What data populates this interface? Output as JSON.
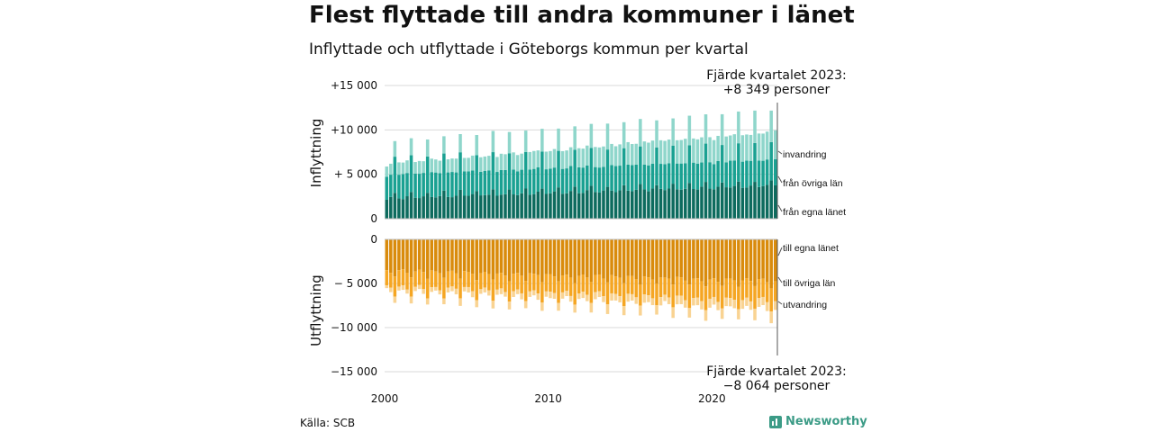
{
  "title": "Flest flyttade till andra kommuner i länet",
  "subtitle": "Inflyttade och utflyttade i Göteborgs kommun per kvartal",
  "source": "Källa: SCB",
  "brand": "Newsworthy",
  "colors": {
    "in_egna": "#0d6b5e",
    "in_ovriga": "#1aa192",
    "in_invandring": "#8fd6cb",
    "ut_egna": "#d98b0c",
    "ut_ovriga": "#f5a623",
    "ut_utvandring": "#f9d392",
    "brand": "#3b9b86"
  },
  "chart_data": {
    "type": "bar",
    "stacked": true,
    "x_start": 2000,
    "x_end": 2023,
    "quarters_per_year": 4,
    "x_ticks": [
      "2000",
      "2010",
      "2020"
    ],
    "panels": [
      {
        "ylabel": "Inflyttning",
        "ylim": [
          0,
          15000
        ],
        "y_ticks": [
          "0",
          "+ 5 000",
          "+10 000",
          "+15 000"
        ],
        "y_tick_values": [
          0,
          5000,
          10000,
          15000
        ],
        "annotation": [
          "Fjärde kvartalet 2023:",
          "+8 349 personer"
        ],
        "series": [
          {
            "name": "från egna länet",
            "quarterly_pattern": [
              2200,
              2400,
              2900,
              2300
            ],
            "growth_per_year": 60
          },
          {
            "name": "från övriga län",
            "quarterly_pattern": [
              2700,
              2600,
              4100,
              2700
            ],
            "growth_per_year": 10
          },
          {
            "name": "invandring",
            "quarterly_pattern": [
              1200,
              1250,
              1800,
              1300
            ],
            "growth_per_year": 80
          }
        ],
        "last_value": 8349
      },
      {
        "ylabel": "Utflyttning",
        "ylim": [
          -15000,
          0
        ],
        "y_ticks": [
          "0",
          "− 5 000",
          "−10 000",
          "−15 000"
        ],
        "y_tick_values": [
          0,
          -5000,
          -10000,
          -15000
        ],
        "annotation": [
          "Fjärde kvartalet 2023:",
          "−8 064 personer"
        ],
        "series": [
          {
            "name": "till egna länet",
            "quarterly_pattern": [
              -3400,
              -3700,
              -4300,
              -3500
            ],
            "growth_per_year": -50
          },
          {
            "name": "till övriga län",
            "quarterly_pattern": [
              -1700,
              -1800,
              -2200,
              -1800
            ],
            "growth_per_year": -20
          },
          {
            "name": "utvandring",
            "quarterly_pattern": [
              -400,
              -450,
              -700,
              -450
            ],
            "growth_per_year": -25
          }
        ],
        "last_value": -8064
      }
    ],
    "grid": true
  }
}
